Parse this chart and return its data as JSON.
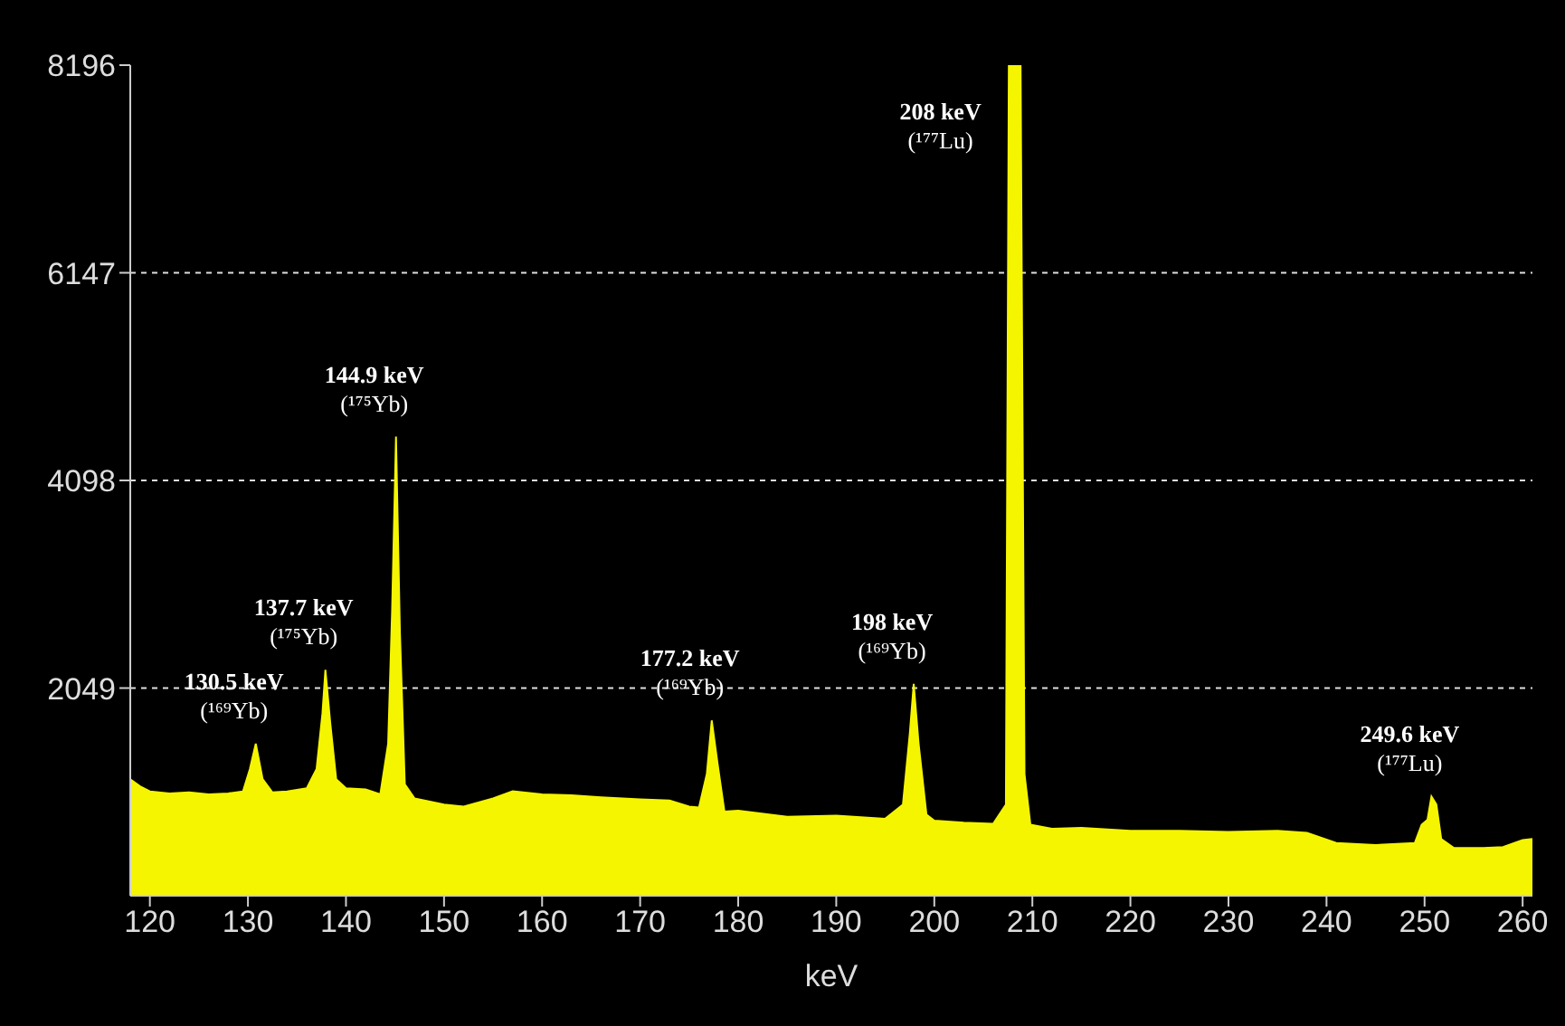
{
  "chart_data": {
    "type": "area",
    "xlabel": "keV",
    "color": "#f5f500",
    "x": [
      118,
      119,
      120,
      122,
      124,
      126,
      128,
      129.5,
      130.2,
      130.8,
      131.5,
      132.5,
      134,
      136,
      137,
      137.6,
      137.9,
      138.4,
      139,
      140,
      142,
      143.5,
      144.3,
      144.7,
      145.1,
      145.5,
      146,
      147,
      150,
      152,
      155,
      157,
      160,
      163,
      166,
      170,
      173,
      175,
      176,
      176.8,
      177.3,
      177.9,
      178.6,
      180,
      185,
      190,
      195,
      196.8,
      197.5,
      197.9,
      198.4,
      199.2,
      200,
      203,
      206,
      207.3,
      207.6,
      208.8,
      209.2,
      209.8,
      212,
      215,
      220,
      225,
      230,
      235,
      238,
      241,
      245,
      249,
      249.7,
      250.3,
      250.7,
      251.2,
      251.7,
      253,
      256,
      258,
      260,
      261
    ],
    "values": [
      1150,
      1080,
      1030,
      1010,
      1020,
      1000,
      1010,
      1030,
      1250,
      1500,
      1150,
      1020,
      1030,
      1060,
      1250,
      1800,
      2230,
      1700,
      1150,
      1060,
      1050,
      1000,
      1500,
      2800,
      4530,
      2600,
      1100,
      960,
      900,
      880,
      960,
      1030,
      1000,
      990,
      970,
      950,
      940,
      880,
      870,
      1200,
      1730,
      1300,
      830,
      840,
      780,
      790,
      760,
      900,
      1600,
      2090,
      1500,
      800,
      740,
      720,
      710,
      900,
      8196,
      8196,
      1200,
      700,
      660,
      670,
      640,
      640,
      630,
      640,
      620,
      520,
      500,
      520,
      700,
      750,
      980,
      900,
      560,
      470,
      470,
      480,
      550,
      560
    ],
    "xlim": [
      118,
      261
    ],
    "xticks": [
      120,
      130,
      140,
      150,
      160,
      170,
      180,
      190,
      200,
      210,
      220,
      230,
      240,
      250,
      260
    ],
    "ylim": [
      0,
      8196
    ],
    "yticks": [
      2049,
      4098,
      6147,
      8196
    ],
    "grid": "y",
    "annotations": [
      {
        "text": "130.5 keV\n(¹⁶⁹Yb)",
        "x": 130.8,
        "y": 1500
      },
      {
        "text": "137.7 keV\n(¹⁷⁵Yb)",
        "x": 137.9,
        "y": 2230
      },
      {
        "text": "144.9 keV\n(¹⁷⁵Yb)",
        "x": 145.1,
        "y": 4530
      },
      {
        "text": "177.2 keV\n(¹⁶⁹Yb)",
        "x": 177.3,
        "y": 1730
      },
      {
        "text": "198 keV\n(¹⁶⁹Yb)",
        "x": 197.9,
        "y": 2090
      },
      {
        "text": "208 keV\n(¹⁷⁷Lu)",
        "x": 208,
        "y": 8196
      },
      {
        "text": "249.6 keV\n(¹⁷⁷Lu)",
        "x": 250.7,
        "y": 980
      }
    ]
  }
}
